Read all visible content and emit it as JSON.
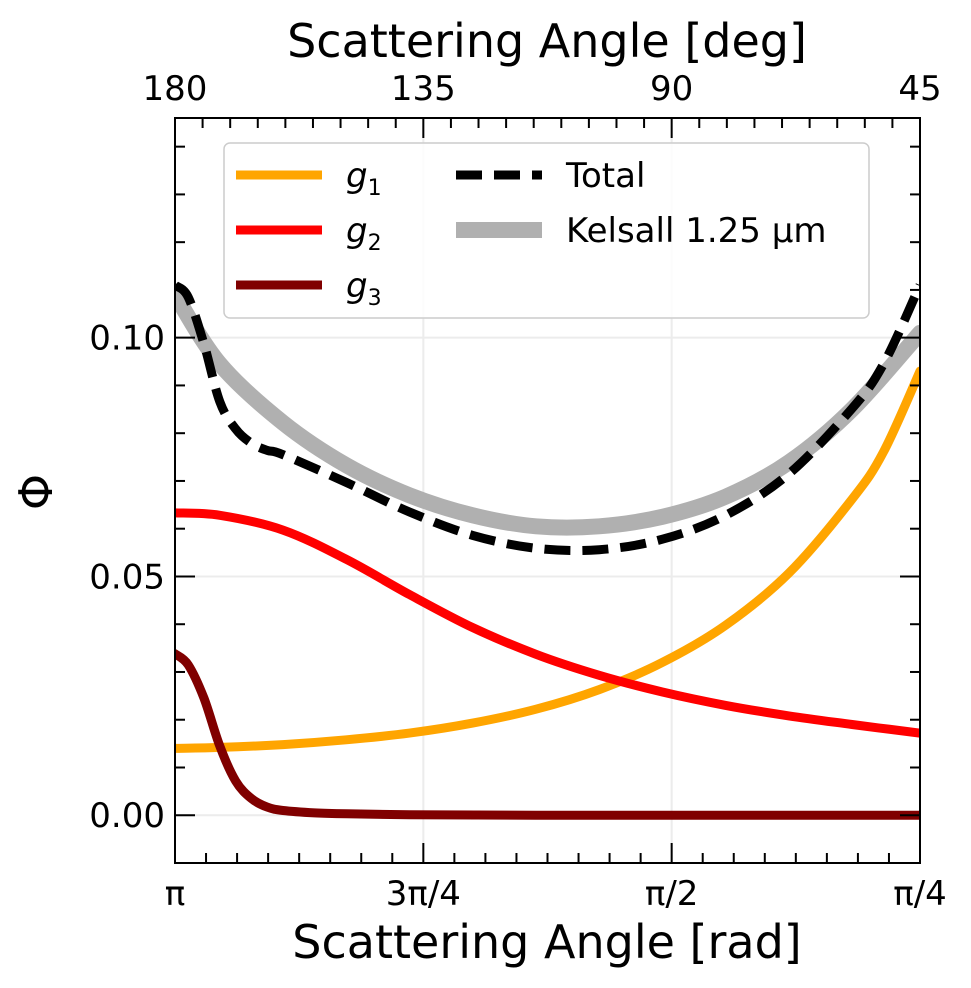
{
  "chart_data": {
    "type": "line",
    "xlabel_bottom": "Scattering Angle [rad]",
    "xlabel_top": "Scattering Angle [deg]",
    "ylabel": "Φ",
    "xlim_rad": [
      3.14159,
      0.785398
    ],
    "ylim": [
      -0.01,
      0.146
    ],
    "grid": true,
    "legend_position": "top",
    "bottom_ticks": [
      {
        "value": 3.14159,
        "label": "π"
      },
      {
        "value": 2.35619,
        "label": "3π/4"
      },
      {
        "value": 1.5708,
        "label": "π/2"
      },
      {
        "value": 0.785398,
        "label": "π/4"
      }
    ],
    "top_ticks": [
      {
        "value": 180,
        "label": "180"
      },
      {
        "value": 135,
        "label": "135"
      },
      {
        "value": 90,
        "label": "90"
      },
      {
        "value": 45,
        "label": "45"
      }
    ],
    "y_ticks": [
      {
        "value": 0.0,
        "label": "0.00"
      },
      {
        "value": 0.05,
        "label": "0.05"
      },
      {
        "value": 0.1,
        "label": "0.10"
      }
    ],
    "series": [
      {
        "name": "g1",
        "legend_base": "g",
        "legend_sub": "1",
        "color": "#FFA500",
        "style": "solid",
        "x": [
          3.1416,
          3.0,
          2.8,
          2.6,
          2.4,
          2.2,
          2.0,
          1.8,
          1.6,
          1.4,
          1.2,
          1.0,
          0.9,
          0.7854
        ],
        "y": [
          0.014,
          0.0142,
          0.0148,
          0.0158,
          0.0172,
          0.0193,
          0.0222,
          0.0263,
          0.032,
          0.0398,
          0.0507,
          0.0662,
          0.0762,
          0.093
        ]
      },
      {
        "name": "g2",
        "legend_base": "g",
        "legend_sub": "2",
        "color": "#FF0000",
        "style": "solid",
        "x": [
          3.1416,
          3.0,
          2.8,
          2.6,
          2.4,
          2.2,
          2.0,
          1.8,
          1.6,
          1.4,
          1.2,
          1.0,
          0.7854
        ],
        "y": [
          0.0633,
          0.0628,
          0.0597,
          0.0536,
          0.0462,
          0.0393,
          0.0337,
          0.0293,
          0.0258,
          0.023,
          0.0208,
          0.019,
          0.0172
        ]
      },
      {
        "name": "g3",
        "legend_base": "g",
        "legend_sub": "3",
        "color": "#800000",
        "style": "solid",
        "x": [
          3.1416,
          3.1,
          3.05,
          3.0,
          2.95,
          2.9,
          2.85,
          2.8,
          2.7,
          2.6,
          2.4,
          2.0,
          1.5,
          1.0,
          0.7854
        ],
        "y": [
          0.0338,
          0.0315,
          0.0245,
          0.0145,
          0.0072,
          0.0035,
          0.0017,
          0.001,
          0.0005,
          0.0003,
          0.0001,
          0.0,
          0.0,
          0.0,
          0.0
        ]
      },
      {
        "name": "Total",
        "legend_label": "Total",
        "color": "#000000",
        "style": "dashed",
        "x": [
          3.1416,
          3.1,
          3.05,
          3.0,
          2.95,
          2.9,
          2.85,
          2.8,
          2.6,
          2.4,
          2.2,
          2.0,
          1.8,
          1.6,
          1.4,
          1.2,
          1.0,
          0.9,
          0.7854
        ],
        "y": [
          0.111,
          0.1085,
          0.0987,
          0.0866,
          0.0809,
          0.0779,
          0.0764,
          0.0755,
          0.0697,
          0.0635,
          0.0586,
          0.0559,
          0.0556,
          0.0578,
          0.0628,
          0.0715,
          0.0852,
          0.0946,
          0.111
        ]
      },
      {
        "name": "Kelsall",
        "legend_label": "Kelsall 1.25 μm",
        "color": "#B0B0B0",
        "style": "solid-thick",
        "x": [
          3.1416,
          3.0,
          2.8,
          2.6,
          2.4,
          2.2,
          2.0,
          1.8,
          1.6,
          1.4,
          1.2,
          1.0,
          0.7854
        ],
        "y": [
          0.109,
          0.0945,
          0.0822,
          0.0733,
          0.067,
          0.0628,
          0.0605,
          0.0605,
          0.0625,
          0.0667,
          0.0739,
          0.085,
          0.101
        ]
      }
    ]
  }
}
